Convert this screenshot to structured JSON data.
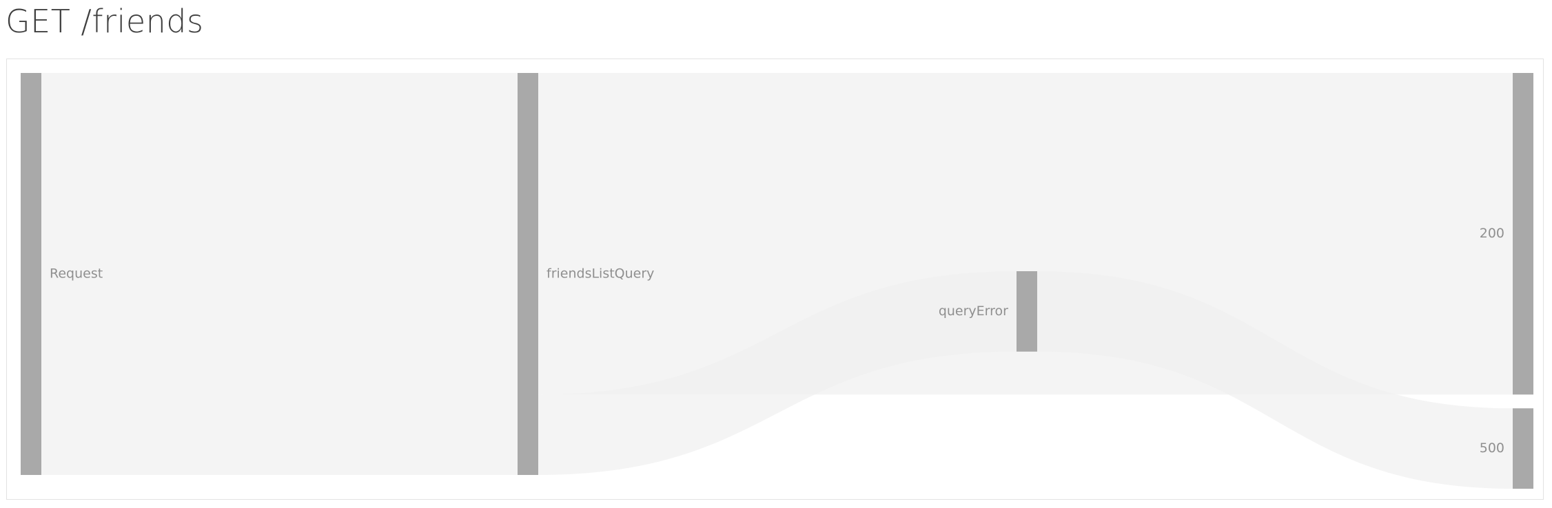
{
  "page": {
    "title": "GET /friends"
  },
  "colors": {
    "node": "#a9a9a9",
    "link": "#f0f0f0",
    "panel_border": "#e2e2e2",
    "label": "#8f8f8f",
    "title": "#3f3f3f"
  },
  "chart_data": {
    "type": "sankey",
    "title": "GET /friends",
    "nodes": [
      {
        "id": "request",
        "label": "Request",
        "column": 0,
        "value": 100
      },
      {
        "id": "friendsListQuery",
        "label": "friendsListQuery",
        "column": 1,
        "value": 100
      },
      {
        "id": "queryError",
        "label": "queryError",
        "column": 2,
        "value": 20
      },
      {
        "id": "s200",
        "label": "200",
        "column": 3,
        "value": 80
      },
      {
        "id": "s500",
        "label": "500",
        "column": 3,
        "value": 20
      }
    ],
    "links": [
      {
        "source": "request",
        "target": "friendsListQuery",
        "value": 100
      },
      {
        "source": "friendsListQuery",
        "target": "s200",
        "value": 80
      },
      {
        "source": "friendsListQuery",
        "target": "queryError",
        "value": 20
      },
      {
        "source": "queryError",
        "target": "s500",
        "value": 20
      }
    ]
  }
}
